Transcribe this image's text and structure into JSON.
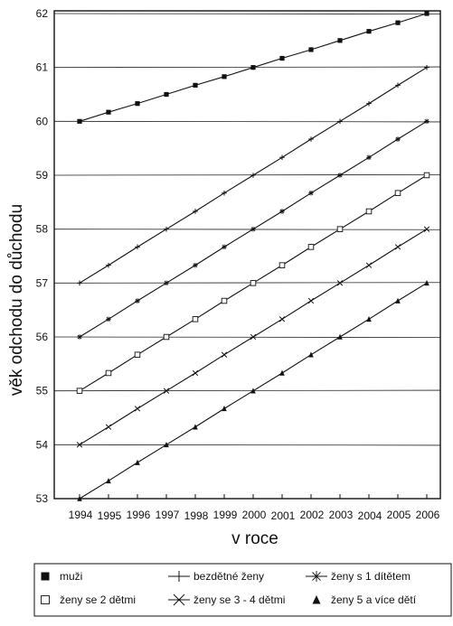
{
  "chart_data": {
    "type": "line",
    "title": "",
    "xlabel": "v roce",
    "ylabel": "věk odchodu do důchodu",
    "xlim": [
      1994,
      2006
    ],
    "ylim": [
      53,
      62
    ],
    "grid": "horizontal",
    "legend_position": "bottom",
    "x": [
      "1994",
      "1995",
      "1996",
      "1997",
      "1998",
      "1999",
      "2000",
      "2001",
      "2002",
      "2003",
      "2004",
      "2005",
      "2006"
    ],
    "yticks": [
      "53",
      "54",
      "55",
      "56",
      "57",
      "58",
      "59",
      "60",
      "61",
      "62"
    ],
    "series": [
      {
        "name": "muži",
        "marker": "filled-square",
        "values": [
          60.0,
          60.17,
          60.33,
          60.5,
          60.67,
          60.83,
          61.0,
          61.17,
          61.33,
          61.5,
          61.67,
          61.83,
          62.0
        ]
      },
      {
        "name": "bezdětné ženy",
        "marker": "plus",
        "values": [
          57.0,
          57.33,
          57.67,
          58.0,
          58.33,
          58.67,
          59.0,
          59.33,
          59.67,
          60.0,
          60.33,
          60.67,
          61.0
        ]
      },
      {
        "name": "ženy s 1 dítětem",
        "marker": "asterisk",
        "values": [
          56.0,
          56.33,
          56.67,
          57.0,
          57.33,
          57.67,
          58.0,
          58.33,
          58.67,
          59.0,
          59.33,
          59.67,
          60.0
        ]
      },
      {
        "name": "ženy se 2 dětmi",
        "marker": "open-square",
        "values": [
          55.0,
          55.33,
          55.67,
          56.0,
          56.33,
          56.67,
          57.0,
          57.33,
          57.67,
          58.0,
          58.33,
          58.67,
          59.0
        ]
      },
      {
        "name": "ženy se 3 - 4 dětmi",
        "marker": "cross",
        "values": [
          54.0,
          54.33,
          54.67,
          55.0,
          55.33,
          55.67,
          56.0,
          56.33,
          56.67,
          57.0,
          57.33,
          57.67,
          58.0
        ]
      },
      {
        "name": "ženy 5 a více dětí",
        "marker": "filled-triangle",
        "values": [
          53.0,
          53.33,
          53.67,
          54.0,
          54.33,
          54.67,
          55.0,
          55.33,
          55.67,
          56.0,
          56.33,
          56.67,
          57.0
        ]
      }
    ],
    "legend_rows": [
      [
        "muži",
        "bezdětné ženy",
        "ženy s 1 dítětem"
      ],
      [
        "ženy se 2 dětmi",
        "ženy se 3 - 4 dětmi",
        "ženy 5 a více dětí"
      ]
    ],
    "colors": {
      "line": "#111111",
      "grid": "#222222",
      "background": "#ffffff"
    }
  }
}
